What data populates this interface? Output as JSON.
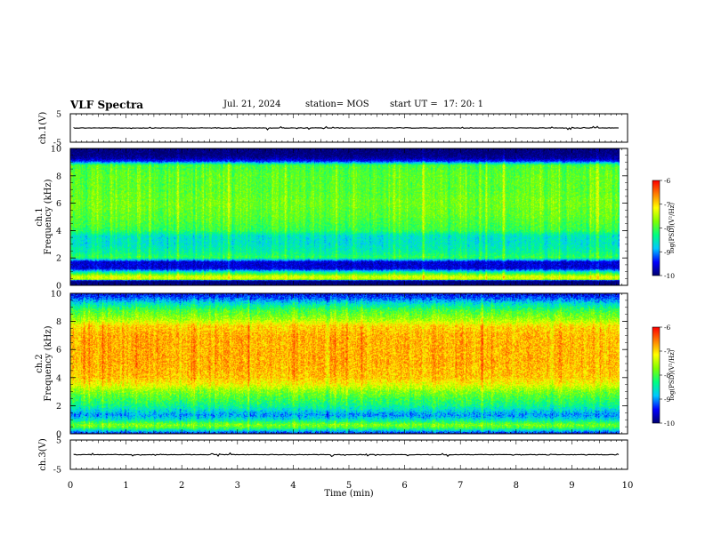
{
  "header": {
    "title": "VLF Spectra",
    "date": "Jul. 21, 2024",
    "station": "station= MOS",
    "start_ut": "start UT =  17: 20: 1"
  },
  "chart_data": [
    {
      "type": "line",
      "panel": "ch1-waveform",
      "ylabel": "ch.1(V)",
      "ylim": [
        -5,
        5
      ],
      "yticks": [
        "5",
        "-5"
      ],
      "series": [
        {
          "values_approx": "flat near 0 V with small spikes"
        }
      ]
    },
    {
      "type": "heatmap",
      "panel": "ch1-spectrogram",
      "ylabel": "ch.1 Frequency (kHz)",
      "ylim": [
        0,
        10
      ],
      "yticks": [
        "0",
        "2",
        "4",
        "6",
        "8",
        "10"
      ],
      "colorbar": {
        "label": "log(PSD)(V²/Hz)",
        "range": [
          -10,
          -6
        ],
        "ticks": [
          "-6",
          "-7",
          "-8",
          "-9",
          "-10"
        ]
      },
      "freq_profile_kHz": [
        [
          0.0,
          -10
        ],
        [
          0.3,
          -10
        ],
        [
          0.4,
          -7.5
        ],
        [
          0.6,
          -7.3
        ],
        [
          0.9,
          -8.3
        ],
        [
          1.2,
          -9.6
        ],
        [
          1.7,
          -9.6
        ],
        [
          2.0,
          -8.1
        ],
        [
          2.4,
          -8.4
        ],
        [
          3.0,
          -8.6
        ],
        [
          3.6,
          -8.6
        ],
        [
          4.0,
          -8.1
        ],
        [
          5.0,
          -7.9
        ],
        [
          6.0,
          -7.8
        ],
        [
          7.0,
          -7.9
        ],
        [
          8.0,
          -7.9
        ],
        [
          8.8,
          -8.0
        ],
        [
          9.1,
          -9.4
        ],
        [
          9.3,
          -9.8
        ],
        [
          9.6,
          -10
        ],
        [
          10.0,
          -10
        ]
      ]
    },
    {
      "type": "heatmap",
      "panel": "ch2-spectrogram",
      "ylabel": "ch.2 Frequency (kHz)",
      "ylim": [
        0,
        10
      ],
      "yticks": [
        "0",
        "2",
        "4",
        "6",
        "8",
        "10"
      ],
      "colorbar": {
        "label": "log(PSD)(V²/Hz)",
        "range": [
          -10,
          -6
        ],
        "ticks": [
          "-6",
          "-7",
          "-8",
          "-9",
          "-10"
        ]
      },
      "freq_profile_kHz": [
        [
          0.0,
          -9.4
        ],
        [
          0.4,
          -8.0
        ],
        [
          0.6,
          -7.7
        ],
        [
          1.0,
          -8.6
        ],
        [
          1.3,
          -9.0
        ],
        [
          1.6,
          -8.7
        ],
        [
          2.0,
          -8.3
        ],
        [
          2.5,
          -8.0
        ],
        [
          3.0,
          -7.7
        ],
        [
          3.5,
          -7.2
        ],
        [
          4.0,
          -6.9
        ],
        [
          5.0,
          -6.8
        ],
        [
          6.0,
          -6.8
        ],
        [
          7.0,
          -6.8
        ],
        [
          7.7,
          -7.0
        ],
        [
          8.2,
          -7.6
        ],
        [
          8.8,
          -8.0
        ],
        [
          9.3,
          -8.6
        ],
        [
          9.7,
          -9.2
        ],
        [
          10.0,
          -9.5
        ]
      ]
    },
    {
      "type": "line",
      "panel": "ch3-waveform",
      "ylabel": "ch.3(V)",
      "ylim": [
        -5,
        5
      ],
      "yticks": [
        "5",
        "-5"
      ],
      "series": [
        {
          "values_approx": "flat near 0 V with small spikes"
        }
      ]
    }
  ],
  "xaxis": {
    "label": "Time (min)",
    "range": [
      0,
      10
    ],
    "ticks": [
      "0",
      "1",
      "2",
      "3",
      "4",
      "5",
      "6",
      "7",
      "8",
      "9",
      "10"
    ],
    "data_end_min": 9.85
  },
  "colors": {
    "colormap": [
      "#000070",
      "#0000ff",
      "#00c8ff",
      "#00ff80",
      "#80ff00",
      "#ffff00",
      "#ff8000",
      "#ff0000",
      "#ffa0a0",
      "#ffffff"
    ]
  }
}
